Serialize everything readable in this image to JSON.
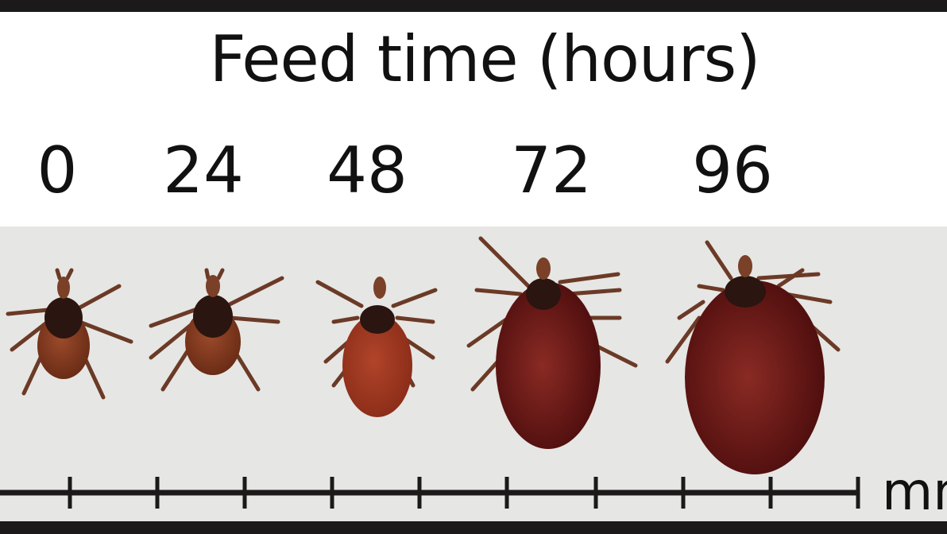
{
  "title": "Feed time (hours)",
  "time_labels": [
    "0",
    "24",
    "48",
    "72",
    "96"
  ],
  "scale_unit": "mm",
  "colors": {
    "background": "#e6e6e4",
    "frame": "#1b1919",
    "tick_unfed": "#5a2a18",
    "tick_engorged": "#6a1410"
  }
}
